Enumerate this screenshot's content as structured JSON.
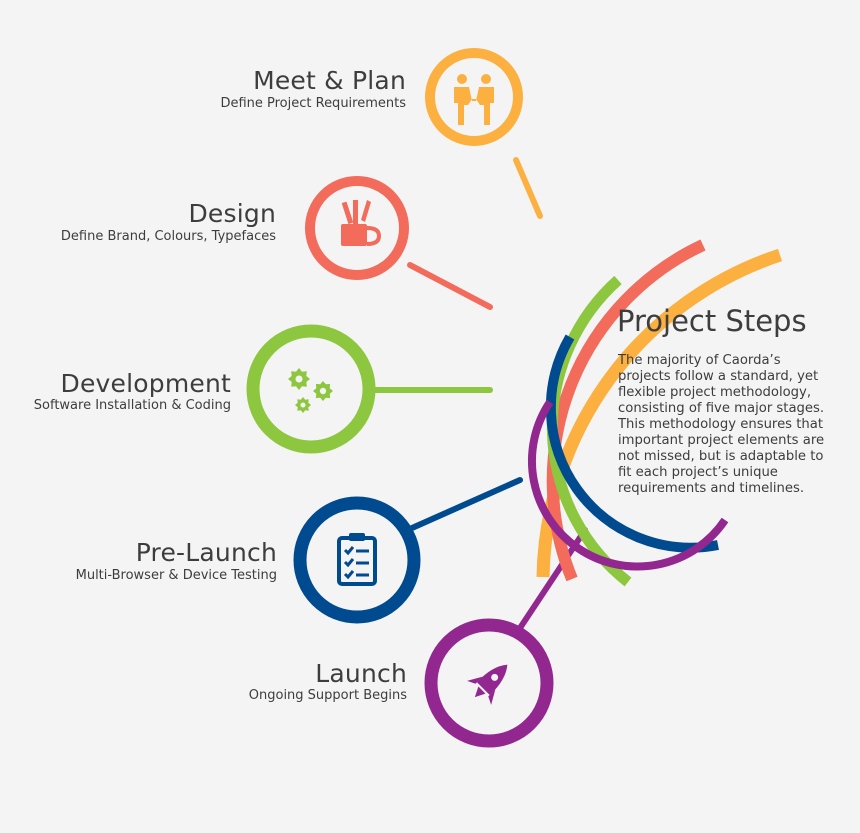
{
  "steps": [
    {
      "title": "Meet & Plan",
      "subtitle": "Define Project Requirements",
      "color": "#fbb040",
      "icon": "people-icon"
    },
    {
      "title": "Design",
      "subtitle": "Define Brand, Colours, Typefaces",
      "color": "#f26b5b",
      "icon": "design-tools-icon"
    },
    {
      "title": "Development",
      "subtitle": "Software Installation & Coding",
      "color": "#8dc63f",
      "icon": "gears-icon"
    },
    {
      "title": "Pre-Launch",
      "subtitle": "Multi-Browser & Device Testing",
      "color": "#004a8f",
      "icon": "clipboard-checklist-icon"
    },
    {
      "title": "Launch",
      "subtitle": "Ongoing Support Begins",
      "color": "#92278f",
      "icon": "rocket-icon"
    }
  ],
  "project": {
    "title": "Project Steps",
    "description": "The majority of Caorda’s projects follow a standard, yet flexible project methodology, consisting of five major stages. This methodology ensures that important project elements are not missed, but is adaptable to fit each project’s unique requirements and timelines."
  }
}
